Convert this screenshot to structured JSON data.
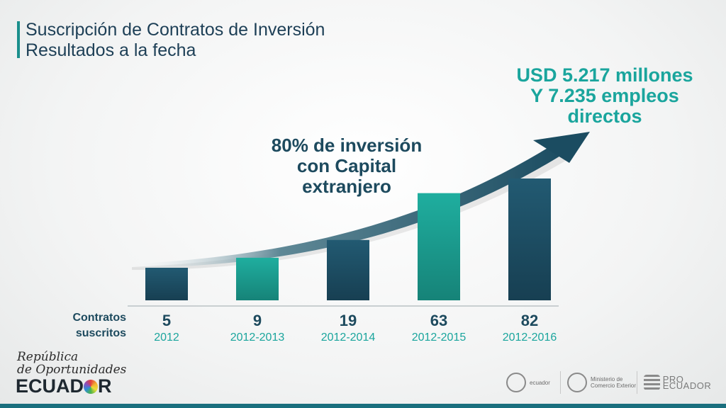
{
  "slide": {
    "title_line1": "Suscripción de Contratos de Inversión",
    "title_line2": "Resultados a la fecha",
    "headline_line1": "USD 5.217 millones",
    "headline_line2": "Y 7.235 empleos",
    "headline_line3": "directos",
    "callout_line1": "80% de inversión",
    "callout_line2": "con Capital",
    "callout_line3": "extranjero",
    "row_label_line1": "Contratos",
    "row_label_line2": "suscritos"
  },
  "colors": {
    "dark_bar": "#1e5167",
    "teal_bar": "#1a9d94",
    "headline": "#1aa59d",
    "text_dark": "#1d4a5e",
    "period_label": "#1aa59d"
  },
  "chart_data": {
    "type": "bar",
    "categories": [
      "2012",
      "2012-2013",
      "2012-2014",
      "2012-2015",
      "2012-2016"
    ],
    "values": [
      5,
      9,
      19,
      63,
      82
    ],
    "value_labels": [
      "5",
      "9",
      "19",
      "63",
      "82"
    ],
    "bar_colors": [
      "dark",
      "teal",
      "dark",
      "teal",
      "dark"
    ],
    "trend_arrow": "rising",
    "title": "",
    "xlabel": "",
    "ylabel": "",
    "grid": false,
    "legend": "none"
  },
  "footer": {
    "country_script_line1": "República",
    "country_script_line2": "de Oportunidades",
    "country_word_before": "ECUAD",
    "country_word_after": "R",
    "partner1_name": "ecuador",
    "partner2_line1": "Ministerio de",
    "partner2_line2": "Comercio Exterior",
    "partner3_name": "PRO ECUADOR"
  }
}
